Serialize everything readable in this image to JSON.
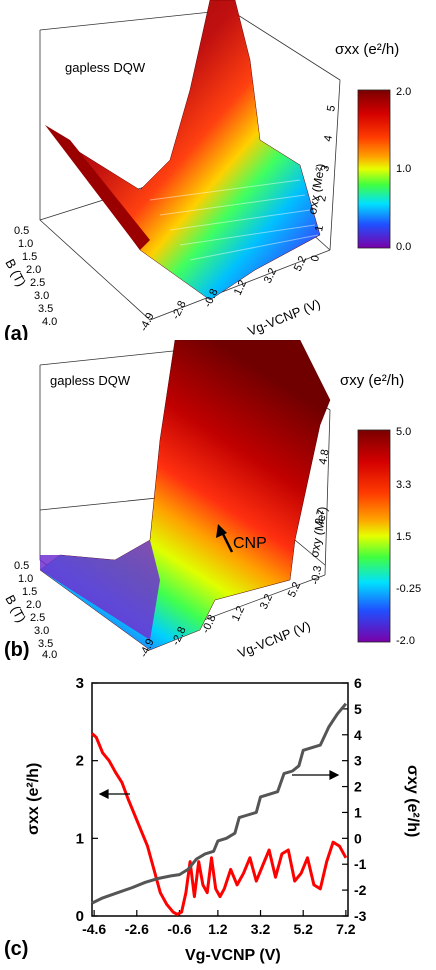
{
  "panels": {
    "a": {
      "letter": "(a)",
      "inset_label": "gapless DQW",
      "colorbar_title": "σxx (e²/h)",
      "colorbar_ticks": [
        "2.0",
        "1.0",
        "0.0"
      ],
      "colorbar_colors": [
        "#7a0000",
        "#d40000",
        "#ff3c00",
        "#ffa000",
        "#e6ff00",
        "#40ff40",
        "#00e0ff",
        "#2050ff",
        "#6a1fd0",
        "#7a00a8"
      ],
      "b_axis_title": "B (T)",
      "b_ticks": [
        "0.5",
        "1.0",
        "1.5",
        "2.0",
        "2.5",
        "3.0",
        "3.5",
        "4.0"
      ],
      "vg_axis_title": "Vg-VCNP (V)",
      "vg_ticks": [
        "-4.9",
        "-2.8",
        "-0.8",
        "1.2",
        "3.2",
        "5.2"
      ],
      "z_axis_title": "σxx (Me²)",
      "z_ticks": [
        "0",
        "1",
        "2",
        "3",
        "4",
        "5"
      ]
    },
    "b": {
      "letter": "(b)",
      "inset_label": "gapless DQW",
      "annotation": "CNP",
      "colorbar_title": "σxy (e²/h)",
      "colorbar_ticks": [
        "5.0",
        "3.3",
        "1.5",
        "-0.25",
        "-2.0"
      ],
      "colorbar_colors": [
        "#7a0000",
        "#d40000",
        "#ff3c00",
        "#ffa000",
        "#e6ff00",
        "#40ff40",
        "#00e0ff",
        "#2050ff",
        "#6a1fd0",
        "#7a00a8"
      ],
      "b_axis_title": "B (T)",
      "b_ticks": [
        "0.5",
        "1.0",
        "1.5",
        "2.0",
        "2.5",
        "3.0",
        "3.5",
        "4.0"
      ],
      "vg_axis_title": "Vg-VCNP (V)",
      "vg_ticks": [
        "-4.9",
        "-2.8",
        "-0.8",
        "1.2",
        "3.2",
        "5.2"
      ],
      "z_axis_title": "σxy (Me²)",
      "z_ticks": [
        "-0.3",
        "2.7",
        "4.8"
      ]
    },
    "c": {
      "letter": "(c)"
    }
  },
  "chart_data": {
    "type": "line",
    "xlabel": "Vg-VCNP (V)",
    "ylabel_left": "σxx (e²/h)",
    "ylabel_right": "σxy (e²/h)",
    "xlim": [
      -4.7,
      7.3
    ],
    "ylim_left": [
      0,
      3
    ],
    "ylim_right": [
      -3,
      6
    ],
    "x_ticks": [
      "-4.6",
      "-2.6",
      "-0.6",
      "1.2",
      "3.2",
      "5.2",
      "7.2"
    ],
    "x_tick_values": [
      -4.6,
      -2.6,
      -0.6,
      1.2,
      3.2,
      5.2,
      7.2
    ],
    "y_left_ticks": [
      "0",
      "1",
      "2",
      "3"
    ],
    "y_left_tick_values": [
      0,
      1,
      2,
      3
    ],
    "y_right_ticks": [
      "-3",
      "-2",
      "-1",
      "0",
      "1",
      "2",
      "3",
      "4",
      "5",
      "6"
    ],
    "y_right_tick_values": [
      -3,
      -2,
      -1,
      0,
      1,
      2,
      3,
      4,
      5,
      6
    ],
    "series": [
      {
        "axis": "left",
        "color": "#ff0000",
        "x": [
          -4.7,
          -4.5,
          -4.2,
          -3.9,
          -3.6,
          -3.3,
          -3.0,
          -2.7,
          -2.4,
          -2.1,
          -1.8,
          -1.5,
          -1.2,
          -0.9,
          -0.7,
          -0.5,
          -0.3,
          -0.1,
          0.1,
          0.3,
          0.5,
          0.7,
          0.9,
          1.1,
          1.3,
          1.5,
          1.8,
          2.1,
          2.4,
          2.7,
          3.0,
          3.3,
          3.6,
          3.9,
          4.2,
          4.5,
          4.8,
          5.1,
          5.4,
          5.7,
          6.0,
          6.3,
          6.6,
          6.9,
          7.2
        ],
        "y": [
          2.35,
          2.3,
          2.1,
          2.0,
          1.85,
          1.72,
          1.5,
          1.3,
          1.1,
          0.9,
          0.6,
          0.3,
          0.15,
          0.05,
          0.02,
          0.05,
          0.3,
          0.7,
          0.25,
          0.7,
          0.4,
          0.3,
          0.75,
          0.35,
          0.25,
          0.35,
          0.6,
          0.4,
          0.55,
          0.75,
          0.45,
          0.65,
          0.85,
          0.5,
          0.8,
          0.85,
          0.45,
          0.55,
          0.75,
          0.4,
          0.35,
          0.7,
          0.95,
          0.9,
          0.75
        ]
      },
      {
        "axis": "right",
        "color": "#555555",
        "x": [
          -4.7,
          -4.2,
          -3.5,
          -2.8,
          -2.2,
          -1.6,
          -1.0,
          -0.6,
          -0.2,
          0.2,
          0.6,
          1.0,
          1.2,
          1.6,
          2.0,
          2.2,
          2.6,
          3.0,
          3.2,
          3.6,
          4.0,
          4.3,
          4.7,
          5.0,
          5.2,
          5.6,
          6.0,
          6.4,
          6.8,
          7.2
        ],
        "y": [
          -2.5,
          -2.3,
          -2.1,
          -1.9,
          -1.7,
          -1.55,
          -1.45,
          -1.4,
          -1.2,
          -0.8,
          -0.6,
          -0.5,
          -0.1,
          0.0,
          0.2,
          0.8,
          0.9,
          1.0,
          1.6,
          1.7,
          1.8,
          2.5,
          2.6,
          2.8,
          3.4,
          3.5,
          3.6,
          4.3,
          4.8,
          5.2
        ]
      }
    ],
    "annotations": [
      "left arrow pointing to σxx axis",
      "right arrow pointing to σxy axis"
    ]
  }
}
